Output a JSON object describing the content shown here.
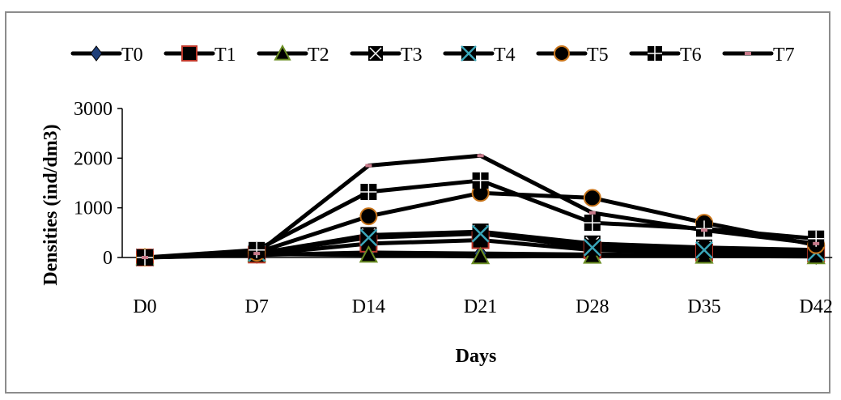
{
  "chart_data": {
    "type": "line",
    "title": "",
    "xlabel": "Days",
    "ylabel": "Densities (ind/dm3)",
    "ylim": [
      0,
      3000
    ],
    "yticks": [
      "0",
      "1000",
      "2000",
      "3000"
    ],
    "categories": [
      "D0",
      "D7",
      "D14",
      "D21",
      "D28",
      "D35",
      "D42"
    ],
    "legend_position": "top",
    "grid": false,
    "line_color": "#000000",
    "series": [
      {
        "name": "T0",
        "marker": "diamond",
        "marker_color": "#1f3f7a",
        "values": [
          0,
          50,
          100,
          80,
          60,
          50,
          30
        ]
      },
      {
        "name": "T1",
        "marker": "square",
        "marker_color": "#000000",
        "marker_stroke": "#c0392b",
        "values": [
          0,
          60,
          280,
          350,
          150,
          100,
          80
        ]
      },
      {
        "name": "T2",
        "marker": "triangle",
        "marker_color": "#000000",
        "marker_stroke": "#6b8e23",
        "values": [
          0,
          70,
          50,
          20,
          30,
          30,
          20
        ]
      },
      {
        "name": "T3",
        "marker": "x-box",
        "marker_color": "#000000",
        "values": [
          0,
          80,
          450,
          520,
          280,
          200,
          150
        ]
      },
      {
        "name": "T4",
        "marker": "x-cyan",
        "marker_color": "#3aa6b9",
        "values": [
          0,
          90,
          400,
          480,
          200,
          150,
          100
        ]
      },
      {
        "name": "T5",
        "marker": "circle",
        "marker_color": "#000000",
        "marker_stroke": "#c8741a",
        "values": [
          0,
          100,
          830,
          1300,
          1200,
          700,
          250
        ]
      },
      {
        "name": "T6",
        "marker": "plus-box",
        "marker_color": "#000000",
        "values": [
          0,
          150,
          1320,
          1550,
          700,
          580,
          380
        ]
      },
      {
        "name": "T7",
        "marker": "dash",
        "marker_color": "#c87a8a",
        "values": [
          0,
          80,
          1850,
          2050,
          900,
          550,
          280
        ]
      }
    ]
  }
}
